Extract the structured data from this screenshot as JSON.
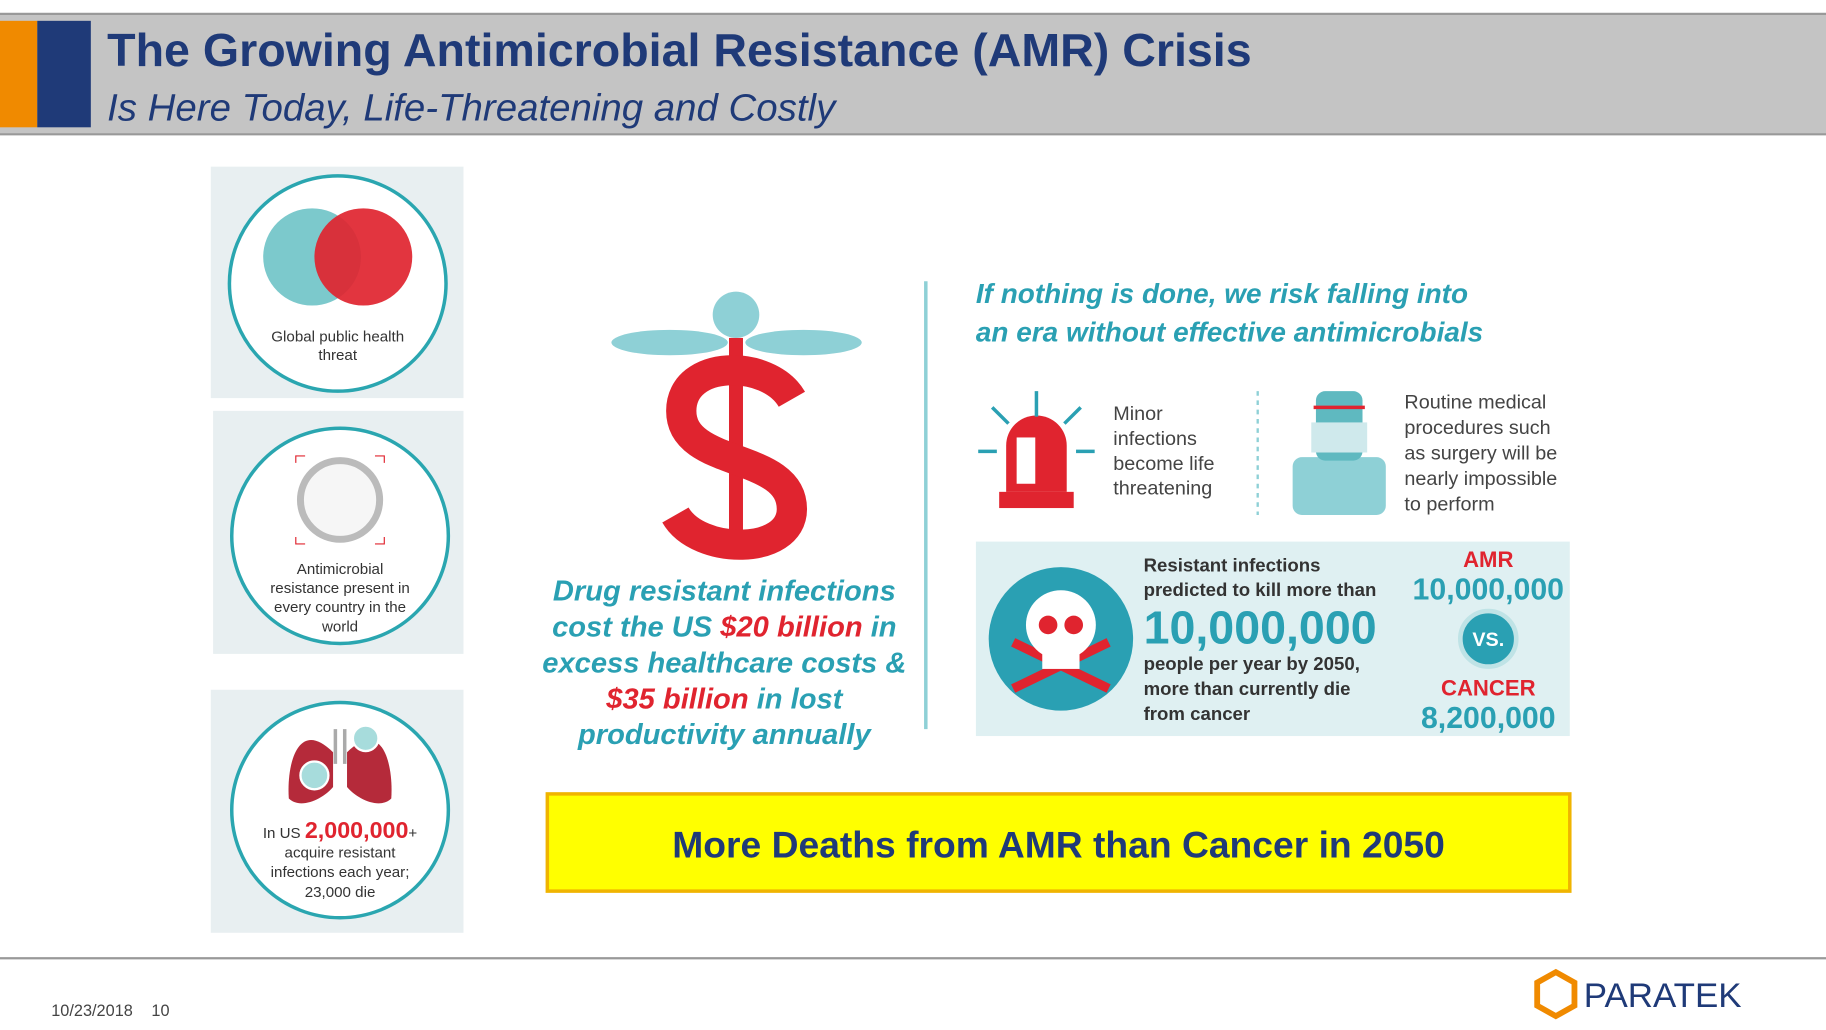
{
  "header": {
    "title": "The Growing Antimicrobial Resistance (AMR) Crisis",
    "subtitle": "Is Here Today, Life-Threatening and Costly"
  },
  "left_panels": [
    {
      "lines": [
        [
          {
            "text": "Global public health"
          }
        ],
        [
          {
            "text": "threat"
          }
        ]
      ]
    },
    {
      "lines": [
        [
          {
            "text": "Antimicrobial"
          }
        ],
        [
          {
            "text": "resistance present in"
          }
        ],
        [
          {
            "text": "every country in the"
          }
        ],
        [
          {
            "text": "world"
          }
        ]
      ]
    },
    {
      "lines": [
        [
          {
            "text": "In US "
          },
          {
            "text": "2,000,000",
            "highlight": true
          },
          {
            "text": "+"
          }
        ],
        [
          {
            "text": "acquire resistant"
          }
        ],
        [
          {
            "text": "infections each year;"
          }
        ],
        [
          {
            "text": "23,000 die"
          }
        ]
      ]
    }
  ],
  "center": {
    "lines": [
      [
        {
          "text": "Drug resistant infections"
        }
      ],
      [
        {
          "text": "cost the US "
        },
        {
          "text": "$20 billion",
          "highlight": true
        },
        {
          "text": " in"
        }
      ],
      [
        {
          "text": "excess healthcare costs &"
        }
      ],
      [
        {
          "text": "$35 billion",
          "highlight": true
        },
        {
          "text": " in lost"
        }
      ],
      [
        {
          "text": "productivity annually"
        }
      ]
    ]
  },
  "right": {
    "heading": [
      [
        {
          "text": "If nothing is done, we risk falling into"
        }
      ],
      [
        {
          "text": "an era without effective antimicrobials"
        }
      ]
    ],
    "items": [
      {
        "lines": [
          [
            {
              "text": "Minor"
            }
          ],
          [
            {
              "text": "infections"
            }
          ],
          [
            {
              "text": "become life"
            }
          ],
          [
            {
              "text": "threatening"
            }
          ]
        ]
      },
      {
        "lines": [
          [
            {
              "text": "Routine medical"
            }
          ],
          [
            {
              "text": "procedures such"
            }
          ],
          [
            {
              "text": "as surgery will be"
            }
          ],
          [
            {
              "text": "nearly impossible"
            }
          ],
          [
            {
              "text": "to perform"
            }
          ]
        ]
      }
    ],
    "stat": {
      "before": [
        [
          {
            "text": "Resistant infections"
          }
        ],
        [
          {
            "text": "predicted to kill more than"
          }
        ]
      ],
      "number": "10,000,000",
      "after": [
        [
          {
            "text": "people per year by 2050,"
          }
        ],
        [
          {
            "text": "more than currently die"
          }
        ],
        [
          {
            "text": "from cancer"
          }
        ]
      ]
    },
    "comparison": {
      "amr_label": "AMR",
      "amr_value": "10,000,000",
      "vs": "VS.",
      "cancer_label": "CANCER",
      "cancer_value": "8,200,000"
    }
  },
  "banner": "More Deaths from AMR than Cancer in 2050",
  "footer": {
    "date": "10/23/2018",
    "page": "10",
    "logo": "PARATEK"
  }
}
